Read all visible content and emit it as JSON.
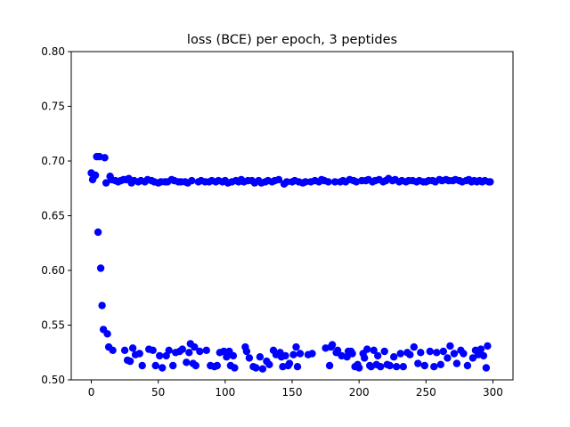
{
  "chart_data": {
    "type": "scatter",
    "title": "loss (BCE) per epoch, 3 peptides",
    "xlabel": "",
    "ylabel": "",
    "xlim": [
      -15,
      315
    ],
    "ylim": [
      0.5,
      0.8
    ],
    "x_ticks": [
      0,
      50,
      100,
      150,
      200,
      250,
      300
    ],
    "x_tick_labels": [
      "0",
      "50",
      "100",
      "150",
      "200",
      "250",
      "300"
    ],
    "y_ticks": [
      0.5,
      0.55,
      0.6,
      0.65,
      0.7,
      0.75,
      0.8
    ],
    "y_tick_labels": [
      "0.50",
      "0.55",
      "0.60",
      "0.65",
      "0.70",
      "0.75",
      "0.80"
    ],
    "grid": false,
    "legend": "none",
    "marker_color": "#0000ff",
    "series": [
      {
        "name": "",
        "points": [
          [
            0,
            0.689
          ],
          [
            1,
            0.683
          ],
          [
            2,
            0.686
          ],
          [
            3,
            0.687
          ],
          [
            4,
            0.704
          ],
          [
            5,
            0.635
          ],
          [
            6,
            0.704
          ],
          [
            7,
            0.602
          ],
          [
            8,
            0.568
          ],
          [
            9,
            0.546
          ],
          [
            10,
            0.703
          ],
          [
            11,
            0.68
          ],
          [
            12,
            0.542
          ],
          [
            13,
            0.53
          ],
          [
            14,
            0.686
          ],
          [
            15,
            0.683
          ],
          [
            16,
            0.527
          ],
          [
            18,
            0.682
          ],
          [
            20,
            0.681
          ],
          [
            22,
            0.682
          ],
          [
            24,
            0.683
          ],
          [
            25,
            0.527
          ],
          [
            26,
            0.683
          ],
          [
            27,
            0.518
          ],
          [
            28,
            0.684
          ],
          [
            29,
            0.517
          ],
          [
            30,
            0.68
          ],
          [
            31,
            0.529
          ],
          [
            32,
            0.682
          ],
          [
            33,
            0.523
          ],
          [
            35,
            0.681
          ],
          [
            36,
            0.524
          ],
          [
            37,
            0.682
          ],
          [
            38,
            0.513
          ],
          [
            40,
            0.681
          ],
          [
            42,
            0.683
          ],
          [
            43,
            0.528
          ],
          [
            45,
            0.682
          ],
          [
            46,
            0.527
          ],
          [
            47,
            0.681
          ],
          [
            48,
            0.513
          ],
          [
            50,
            0.68
          ],
          [
            51,
            0.522
          ],
          [
            52,
            0.681
          ],
          [
            53,
            0.511
          ],
          [
            55,
            0.681
          ],
          [
            56,
            0.522
          ],
          [
            57,
            0.681
          ],
          [
            58,
            0.527
          ],
          [
            60,
            0.683
          ],
          [
            61,
            0.513
          ],
          [
            62,
            0.682
          ],
          [
            63,
            0.525
          ],
          [
            65,
            0.681
          ],
          [
            66,
            0.526
          ],
          [
            67,
            0.681
          ],
          [
            68,
            0.528
          ],
          [
            70,
            0.681
          ],
          [
            71,
            0.516
          ],
          [
            72,
            0.68
          ],
          [
            73,
            0.525
          ],
          [
            74,
            0.533
          ],
          [
            75,
            0.682
          ],
          [
            76,
            0.515
          ],
          [
            77,
            0.53
          ],
          [
            78,
            0.513
          ],
          [
            80,
            0.681
          ],
          [
            81,
            0.526
          ],
          [
            82,
            0.682
          ],
          [
            85,
            0.681
          ],
          [
            86,
            0.527
          ],
          [
            88,
            0.681
          ],
          [
            89,
            0.513
          ],
          [
            90,
            0.682
          ],
          [
            92,
            0.512
          ],
          [
            93,
            0.681
          ],
          [
            94,
            0.513
          ],
          [
            95,
            0.682
          ],
          [
            96,
            0.525
          ],
          [
            98,
            0.681
          ],
          [
            99,
            0.526
          ],
          [
            100,
            0.682
          ],
          [
            101,
            0.521
          ],
          [
            102,
            0.68
          ],
          [
            103,
            0.526
          ],
          [
            104,
            0.513
          ],
          [
            105,
            0.681
          ],
          [
            106,
            0.522
          ],
          [
            107,
            0.511
          ],
          [
            108,
            0.682
          ],
          [
            110,
            0.681
          ],
          [
            112,
            0.683
          ],
          [
            114,
            0.681
          ],
          [
            115,
            0.53
          ],
          [
            116,
            0.526
          ],
          [
            117,
            0.682
          ],
          [
            118,
            0.52
          ],
          [
            120,
            0.682
          ],
          [
            121,
            0.512
          ],
          [
            122,
            0.68
          ],
          [
            123,
            0.511
          ],
          [
            125,
            0.682
          ],
          [
            126,
            0.521
          ],
          [
            127,
            0.68
          ],
          [
            128,
            0.51
          ],
          [
            130,
            0.681
          ],
          [
            131,
            0.517
          ],
          [
            132,
            0.682
          ],
          [
            133,
            0.514
          ],
          [
            135,
            0.681
          ],
          [
            136,
            0.527
          ],
          [
            137,
            0.682
          ],
          [
            138,
            0.523
          ],
          [
            140,
            0.683
          ],
          [
            141,
            0.525
          ],
          [
            142,
            0.521
          ],
          [
            143,
            0.512
          ],
          [
            144,
            0.679
          ],
          [
            145,
            0.522
          ],
          [
            146,
            0.681
          ],
          [
            147,
            0.513
          ],
          [
            148,
            0.515
          ],
          [
            150,
            0.681
          ],
          [
            151,
            0.523
          ],
          [
            152,
            0.682
          ],
          [
            153,
            0.53
          ],
          [
            154,
            0.512
          ],
          [
            155,
            0.681
          ],
          [
            156,
            0.524
          ],
          [
            158,
            0.68
          ],
          [
            160,
            0.681
          ],
          [
            162,
            0.523
          ],
          [
            164,
            0.681
          ],
          [
            165,
            0.524
          ],
          [
            167,
            0.682
          ],
          [
            170,
            0.681
          ],
          [
            172,
            0.683
          ],
          [
            174,
            0.682
          ],
          [
            175,
            0.529
          ],
          [
            177,
            0.681
          ],
          [
            178,
            0.513
          ],
          [
            179,
            0.53
          ],
          [
            180,
            0.532
          ],
          [
            182,
            0.681
          ],
          [
            183,
            0.525
          ],
          [
            184,
            0.527
          ],
          [
            186,
            0.681
          ],
          [
            187,
            0.522
          ],
          [
            188,
            0.682
          ],
          [
            190,
            0.681
          ],
          [
            191,
            0.521
          ],
          [
            192,
            0.526
          ],
          [
            193,
            0.683
          ],
          [
            194,
            0.526
          ],
          [
            195,
            0.524
          ],
          [
            196,
            0.682
          ],
          [
            197,
            0.512
          ],
          [
            198,
            0.681
          ],
          [
            199,
            0.514
          ],
          [
            200,
            0.511
          ],
          [
            202,
            0.682
          ],
          [
            203,
            0.524
          ],
          [
            204,
            0.52
          ],
          [
            205,
            0.682
          ],
          [
            206,
            0.528
          ],
          [
            207,
            0.683
          ],
          [
            208,
            0.513
          ],
          [
            209,
            0.512
          ],
          [
            210,
            0.681
          ],
          [
            211,
            0.527
          ],
          [
            212,
            0.682
          ],
          [
            213,
            0.514
          ],
          [
            214,
            0.522
          ],
          [
            215,
            0.683
          ],
          [
            216,
            0.512
          ],
          [
            218,
            0.681
          ],
          [
            219,
            0.526
          ],
          [
            220,
            0.682
          ],
          [
            221,
            0.514
          ],
          [
            222,
            0.684
          ],
          [
            223,
            0.513
          ],
          [
            225,
            0.682
          ],
          [
            226,
            0.521
          ],
          [
            227,
            0.683
          ],
          [
            228,
            0.512
          ],
          [
            230,
            0.681
          ],
          [
            231,
            0.524
          ],
          [
            232,
            0.682
          ],
          [
            233,
            0.512
          ],
          [
            235,
            0.681
          ],
          [
            236,
            0.525
          ],
          [
            237,
            0.682
          ],
          [
            238,
            0.523
          ],
          [
            240,
            0.682
          ],
          [
            241,
            0.53
          ],
          [
            243,
            0.681
          ],
          [
            244,
            0.515
          ],
          [
            245,
            0.682
          ],
          [
            246,
            0.525
          ],
          [
            248,
            0.681
          ],
          [
            249,
            0.513
          ],
          [
            250,
            0.681
          ],
          [
            252,
            0.682
          ],
          [
            253,
            0.526
          ],
          [
            255,
            0.682
          ],
          [
            256,
            0.512
          ],
          [
            257,
            0.681
          ],
          [
            258,
            0.525
          ],
          [
            260,
            0.683
          ],
          [
            261,
            0.514
          ],
          [
            262,
            0.682
          ],
          [
            263,
            0.526
          ],
          [
            265,
            0.683
          ],
          [
            266,
            0.52
          ],
          [
            267,
            0.682
          ],
          [
            268,
            0.531
          ],
          [
            270,
            0.682
          ],
          [
            271,
            0.524
          ],
          [
            272,
            0.683
          ],
          [
            273,
            0.515
          ],
          [
            275,
            0.682
          ],
          [
            276,
            0.527
          ],
          [
            277,
            0.681
          ],
          [
            278,
            0.524
          ],
          [
            280,
            0.682
          ],
          [
            281,
            0.513
          ],
          [
            282,
            0.683
          ],
          [
            284,
            0.681
          ],
          [
            285,
            0.52
          ],
          [
            286,
            0.682
          ],
          [
            287,
            0.527
          ],
          [
            288,
            0.681
          ],
          [
            289,
            0.523
          ],
          [
            290,
            0.682
          ],
          [
            291,
            0.528
          ],
          [
            292,
            0.681
          ],
          [
            293,
            0.522
          ],
          [
            294,
            0.682
          ],
          [
            295,
            0.511
          ],
          [
            296,
            0.531
          ],
          [
            297,
            0.681
          ],
          [
            298,
            0.681
          ]
        ]
      }
    ]
  }
}
